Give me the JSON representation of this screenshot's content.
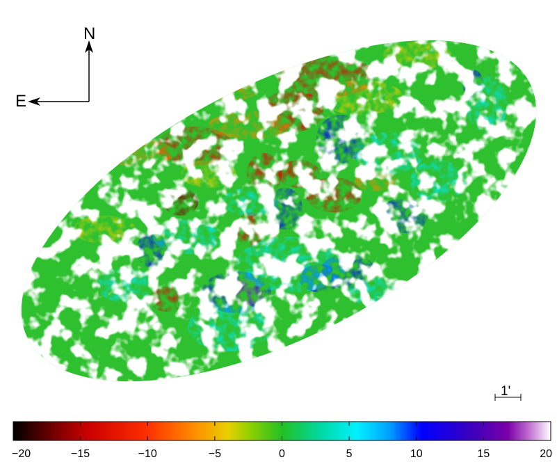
{
  "compass": {
    "north_label": "N",
    "east_label": "E"
  },
  "scale_bar": {
    "label": "1'"
  },
  "colorbar": {
    "min": -20,
    "max": 20,
    "ticks": [
      "-20",
      "-15",
      "-10",
      "-5",
      "0",
      "5",
      "10",
      "15",
      "20"
    ],
    "tick_values": [
      -20,
      -15,
      -10,
      -5,
      0,
      5,
      10,
      15,
      20
    ]
  },
  "colors": {
    "black": "#000000",
    "dark_red": "#7a0000",
    "red": "#e00000",
    "orange": "#ff8800",
    "yellow": "#f0d000",
    "green": "#22c022",
    "cyan": "#00e8ff",
    "blue": "#0000ff",
    "purple": "#7a00a8",
    "light_pink": "#f0c0f0"
  }
}
